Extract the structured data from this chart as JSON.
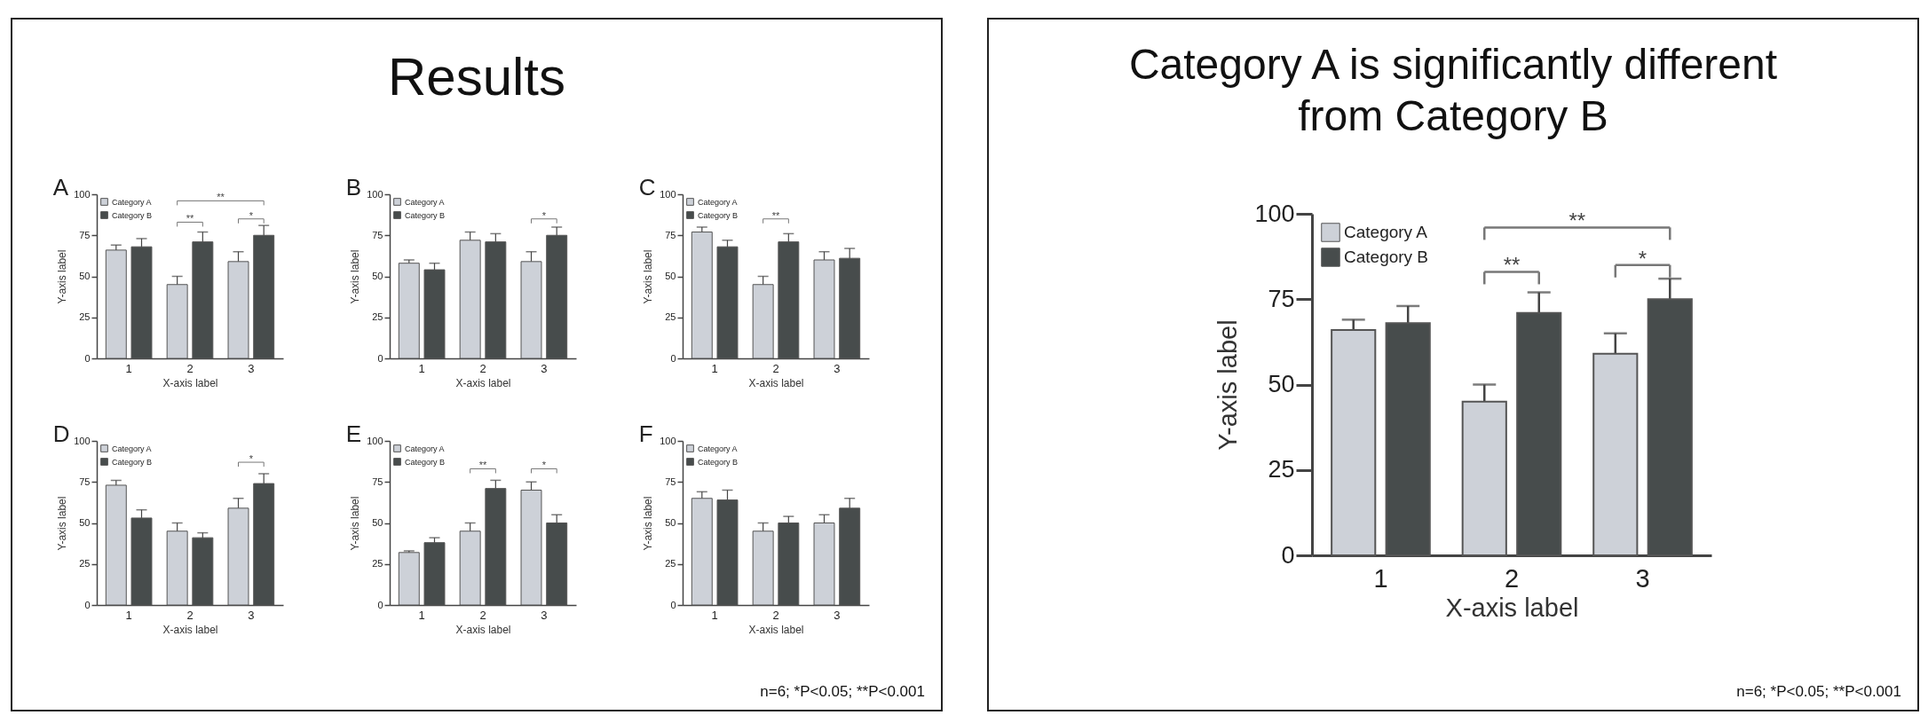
{
  "chart_data": [
    {
      "type": "bar",
      "title": "A",
      "xlabel": "X-axis label",
      "ylabel": "Y-axis label",
      "categories": [
        "1",
        "2",
        "3"
      ],
      "ylim": [
        0,
        100
      ],
      "yticks": [
        0,
        25,
        50,
        75,
        100
      ],
      "legend": "top left",
      "series": [
        {
          "name": "Category A",
          "color": "#cdd1d8",
          "values": [
            66,
            45,
            59
          ],
          "errors": [
            3,
            5,
            6
          ]
        },
        {
          "name": "Category B",
          "color": "#474c4c",
          "values": [
            68,
            71,
            75
          ],
          "errors": [
            5,
            6,
            6
          ]
        }
      ],
      "annotations": [
        "Results",
        "**",
        "*",
        "**"
      ]
    },
    {
      "type": "bar",
      "title": "B",
      "xlabel": "X-axis label",
      "ylabel": "Y-axis label",
      "categories": [
        "1",
        "2",
        "3"
      ],
      "ylim": [
        0,
        100
      ],
      "yticks": [
        0,
        25,
        50,
        75,
        100
      ],
      "legend": "top left",
      "series": [
        {
          "name": "Category A",
          "color": "#cdd1d8",
          "values": [
            58,
            72,
            59
          ],
          "errors": [
            2,
            5,
            6
          ]
        },
        {
          "name": "Category B",
          "color": "#474c4c",
          "values": [
            54,
            71,
            75
          ],
          "errors": [
            4,
            5,
            5
          ]
        }
      ],
      "annotations": [
        "*"
      ]
    },
    {
      "type": "bar",
      "title": "C",
      "xlabel": "X-axis label",
      "ylabel": "Y-axis label",
      "categories": [
        "1",
        "2",
        "3"
      ],
      "ylim": [
        0,
        100
      ],
      "yticks": [
        0,
        25,
        50,
        75,
        100
      ],
      "legend": "top left",
      "series": [
        {
          "name": "Category A",
          "color": "#cdd1d8",
          "values": [
            77,
            45,
            60
          ],
          "errors": [
            3,
            5,
            5
          ]
        },
        {
          "name": "Category B",
          "color": "#474c4c",
          "values": [
            68,
            71,
            61
          ],
          "errors": [
            4,
            5,
            6
          ]
        }
      ],
      "annotations": [
        "**"
      ]
    },
    {
      "type": "bar",
      "title": "D",
      "xlabel": "X-axis label",
      "ylabel": "Y-axis label",
      "categories": [
        "1",
        "2",
        "3"
      ],
      "ylim": [
        0,
        100
      ],
      "yticks": [
        0,
        25,
        50,
        75,
        100
      ],
      "legend": "top left",
      "series": [
        {
          "name": "Category A",
          "color": "#cdd1d8",
          "values": [
            73,
            45,
            59
          ],
          "errors": [
            3,
            5,
            6
          ]
        },
        {
          "name": "Category B",
          "color": "#474c4c",
          "values": [
            53,
            41,
            74
          ],
          "errors": [
            5,
            3,
            6
          ]
        }
      ],
      "annotations": [
        "*"
      ]
    },
    {
      "type": "bar",
      "title": "E",
      "xlabel": "X-axis label",
      "ylabel": "Y-axis label",
      "categories": [
        "1",
        "2",
        "3"
      ],
      "ylim": [
        0,
        100
      ],
      "yticks": [
        0,
        25,
        50,
        75,
        100
      ],
      "legend": "top left",
      "series": [
        {
          "name": "Category A",
          "color": "#cdd1d8",
          "values": [
            32,
            45,
            70
          ],
          "errors": [
            1,
            5,
            5
          ]
        },
        {
          "name": "Category B",
          "color": "#474c4c",
          "values": [
            38,
            71,
            50
          ],
          "errors": [
            3,
            5,
            5
          ]
        }
      ],
      "annotations": [
        "**",
        "*"
      ]
    },
    {
      "type": "bar",
      "title": "F",
      "xlabel": "X-axis label",
      "ylabel": "Y-axis label",
      "categories": [
        "1",
        "2",
        "3"
      ],
      "ylim": [
        0,
        100
      ],
      "yticks": [
        0,
        25,
        50,
        75,
        100
      ],
      "legend": "top left",
      "series": [
        {
          "name": "Category A",
          "color": "#cdd1d8",
          "values": [
            65,
            45,
            50
          ],
          "errors": [
            4,
            5,
            5
          ]
        },
        {
          "name": "Category B",
          "color": "#474c4c",
          "values": [
            64,
            50,
            59
          ],
          "errors": [
            6,
            4,
            6
          ]
        }
      ],
      "annotations": [
        "n=6; *P<0.05; **P<0.001"
      ]
    },
    {
      "type": "bar",
      "title": "Category A is significantly different from Category B",
      "xlabel": "X-axis label",
      "ylabel": "Y-axis label",
      "categories": [
        "1",
        "2",
        "3"
      ],
      "ylim": [
        0,
        100
      ],
      "yticks": [
        0,
        25,
        50,
        75,
        100
      ],
      "legend": "top left",
      "series": [
        {
          "name": "Category A",
          "color": "#cdd1d8",
          "values": [
            66,
            45,
            59
          ],
          "errors": [
            3,
            5,
            6
          ]
        },
        {
          "name": "Category B",
          "color": "#474c4c",
          "values": [
            68,
            71,
            75
          ],
          "errors": [
            5,
            6,
            6
          ]
        }
      ],
      "annotations": [
        "**",
        "*",
        "**",
        "n=6; *P<0.05; **P<0.001"
      ]
    }
  ]
}
